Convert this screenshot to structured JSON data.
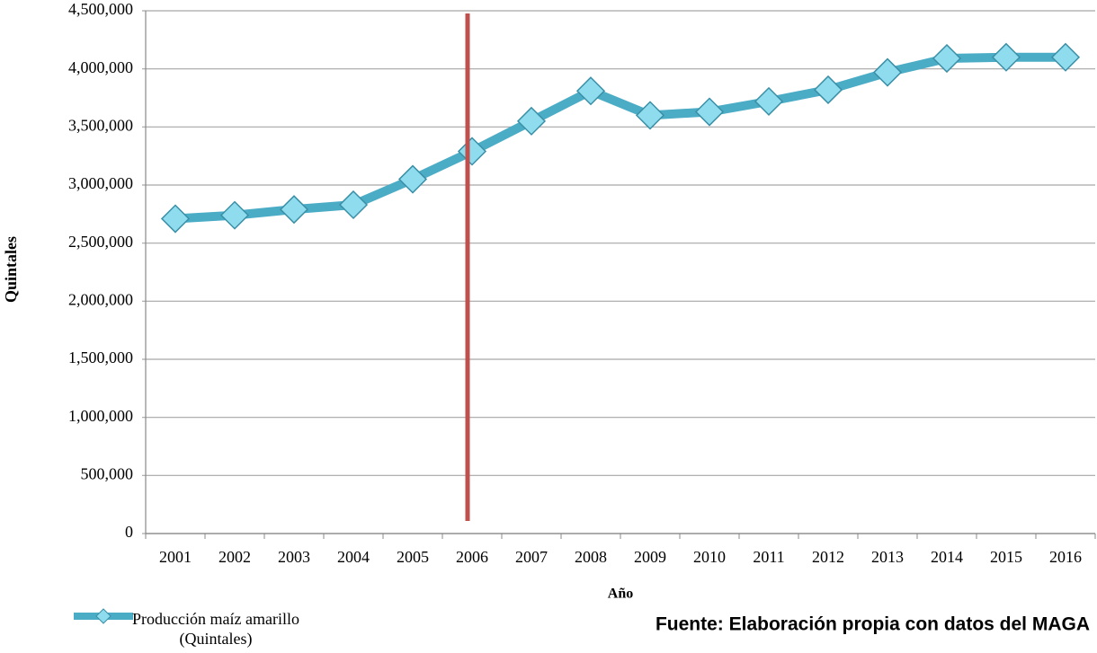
{
  "chart_data": {
    "type": "line",
    "categories": [
      "2001",
      "2002",
      "2003",
      "2004",
      "2005",
      "2006",
      "2007",
      "2008",
      "2009",
      "2010",
      "2011",
      "2012",
      "2013",
      "2014",
      "2015",
      "2016"
    ],
    "series": [
      {
        "name": "Producción maíz amarillo (Quintales)",
        "color": "#4bacc6",
        "values": [
          2710000,
          2740000,
          2790000,
          2830000,
          3050000,
          3290000,
          3550000,
          3810000,
          3600000,
          3630000,
          3720000,
          3820000,
          3970000,
          4090000,
          4100000,
          4100000
        ]
      }
    ],
    "ylim": [
      0,
      4500000
    ],
    "yticks": [
      0,
      {
        "value": 500000,
        "label": "500,000"
      },
      {
        "value": 1000000,
        "label": "1,000,000"
      },
      {
        "value": 1500000,
        "label": "1,500,000"
      },
      {
        "value": 2000000,
        "label": "2,000,000"
      },
      {
        "value": 2500000,
        "label": "2,500,000"
      },
      {
        "value": 3000000,
        "label": "3,000,000"
      },
      {
        "value": 3500000,
        "label": "3,500,000"
      },
      {
        "value": 4000000,
        "label": "4,000,000"
      },
      {
        "value": 4500000,
        "label": "4,500,000"
      }
    ],
    "grid": true,
    "y_label": "Quintales",
    "x_label": "Año",
    "source": "Fuente: Elaboración propia con datos del MAGA",
    "marker_line": {
      "category": "2006",
      "color": "#c0504d"
    },
    "legend": "bottom-left"
  }
}
